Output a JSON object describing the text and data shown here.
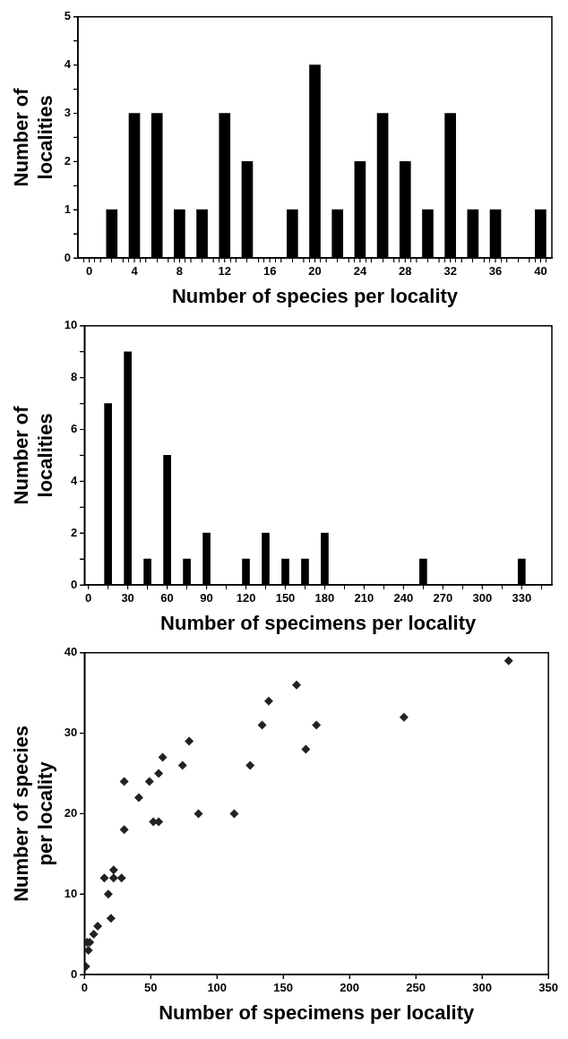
{
  "chart_data": [
    {
      "type": "bar",
      "xlabel": "Number of species per locality",
      "ylabel": "Number of localities",
      "color": "#000000",
      "x": [
        2,
        4,
        6,
        8,
        10,
        12,
        14,
        16,
        18,
        20,
        22,
        24,
        26,
        28,
        30,
        32,
        34,
        36,
        38,
        40
      ],
      "values": [
        1,
        3,
        3,
        1,
        1,
        3,
        2,
        0,
        1,
        4,
        1,
        2,
        3,
        2,
        1,
        3,
        1,
        1,
        0,
        1
      ],
      "xlim": [
        -1,
        41
      ],
      "xticks": [
        0,
        {
          "value": 1,
          "label": null
        },
        {
          "value": 3,
          "label": null
        },
        4,
        {
          "value": 5,
          "label": null
        },
        {
          "value": 7,
          "label": null
        },
        8,
        {
          "value": 9,
          "label": null
        },
        {
          "value": 11,
          "label": null
        },
        12,
        {
          "value": 13,
          "label": null
        },
        {
          "value": 15,
          "label": null
        },
        16,
        {
          "value": 17,
          "label": null
        },
        {
          "value": 19,
          "label": null
        },
        20,
        {
          "value": 21,
          "label": null
        },
        {
          "value": 23,
          "label": null
        },
        24,
        {
          "value": 25,
          "label": null
        },
        {
          "value": 27,
          "label": null
        },
        28,
        {
          "value": 29,
          "label": null
        },
        {
          "value": 31,
          "label": null
        },
        32,
        {
          "value": 33,
          "label": null
        },
        {
          "value": 35,
          "label": null
        },
        36,
        {
          "value": 37,
          "label": null
        },
        {
          "value": 39,
          "label": null
        },
        40
      ],
      "ylim": [
        0,
        5
      ],
      "yticks": [
        0,
        {
          "value": 0.5,
          "label": null
        },
        1,
        {
          "value": 1.5,
          "label": null
        },
        2,
        {
          "value": 2.5,
          "label": null
        },
        3,
        {
          "value": 3.5,
          "label": null
        },
        4,
        {
          "value": 4.5,
          "label": null
        },
        5
      ]
    },
    {
      "type": "bar",
      "xlabel": "Number of specimens per locality",
      "ylabel": "Number of localities",
      "color": "#000000",
      "x": [
        15,
        30,
        45,
        60,
        75,
        90,
        120,
        135,
        150,
        165,
        180,
        255,
        330
      ],
      "values": [
        7,
        9,
        1,
        5,
        1,
        2,
        1,
        2,
        1,
        1,
        2,
        1,
        1
      ],
      "xlim": [
        -3,
        353
      ],
      "xticks": [
        0,
        30,
        60,
        90,
        120,
        150,
        180,
        210,
        240,
        270,
        300,
        330
      ],
      "ylim": [
        0,
        10
      ],
      "yticks": [
        0,
        {
          "value": 1,
          "label": null
        },
        2,
        {
          "value": 3,
          "label": null
        },
        4,
        {
          "value": 5,
          "label": null
        },
        6,
        {
          "value": 7,
          "label": null
        },
        8,
        {
          "value": 9,
          "label": null
        },
        10
      ]
    },
    {
      "type": "scatter",
      "xlabel": "Number of specimens per locality",
      "ylabel": "Number of species per locality",
      "color": "#222222",
      "marker": "diamond",
      "x": [
        320,
        160,
        139,
        134,
        175,
        241,
        167,
        125,
        79,
        74,
        59,
        56,
        49,
        30,
        41,
        30,
        52,
        56,
        86,
        113,
        22,
        15,
        22,
        28,
        18,
        20,
        10,
        7,
        4,
        3,
        2,
        1
      ],
      "values": [
        39,
        36,
        34,
        31,
        31,
        32,
        28,
        26,
        29,
        26,
        27,
        25,
        24,
        24,
        22,
        18,
        19,
        19,
        20,
        20,
        13,
        12,
        12,
        12,
        10,
        7,
        6,
        5,
        4,
        3,
        4,
        1
      ],
      "xlim": [
        0,
        350
      ],
      "xticks": [
        0,
        50,
        100,
        150,
        200,
        250,
        300,
        350
      ],
      "ylim": [
        0,
        40
      ],
      "yticks": [
        0,
        10,
        20,
        30,
        40
      ]
    }
  ]
}
